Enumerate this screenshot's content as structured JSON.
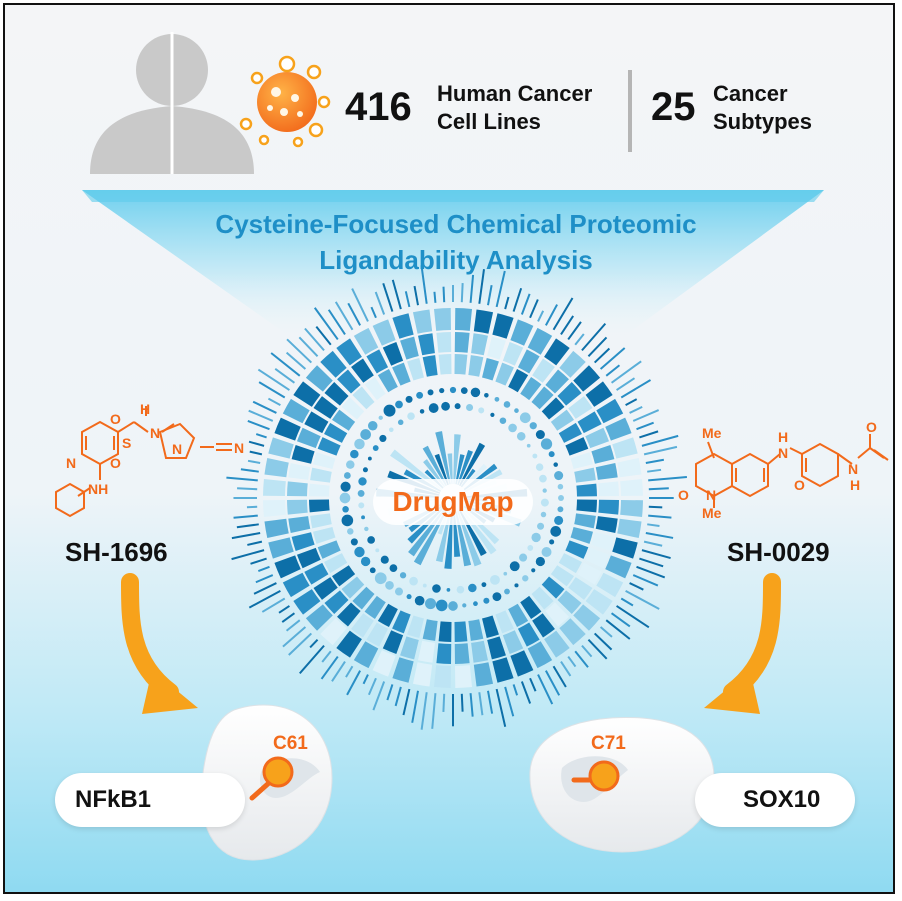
{
  "header": {
    "cell_line_count": "416",
    "cell_line_label_line1": "Human Cancer",
    "cell_line_label_line2": "Cell Lines",
    "subtype_count": "25",
    "subtype_label_line1": "Cancer",
    "subtype_label_line2": "Subtypes"
  },
  "banner": {
    "line1": "Cysteine-Focused Chemical Proteomic",
    "line2": "Ligandability Analysis"
  },
  "center": {
    "label": "DrugMap"
  },
  "left": {
    "compound": "SH-1696",
    "protein": "NFkB1",
    "site": "C61",
    "atoms": {
      "h": "H",
      "n1": "N",
      "s": "S",
      "o1": "O",
      "o2": "O",
      "n2": "N",
      "n3": "N",
      "n4": "N",
      "n5": "N",
      "nh": "NH"
    }
  },
  "right": {
    "compound": "SH-0029",
    "protein": "SOX10",
    "site": "C71",
    "atoms": {
      "me1": "Me",
      "h1": "H",
      "n1": "N",
      "o1": "O",
      "o2": "O",
      "n2": "N",
      "me2": "Me",
      "o3": "O",
      "n3": "N",
      "h2": "H"
    }
  },
  "colors": {
    "orange": "#f26a1b",
    "arrow": "#f7a21b",
    "banner_text": "#1e8fc7",
    "ring_dark": "#0d6fa8",
    "ring_light": "#bde4f4"
  }
}
